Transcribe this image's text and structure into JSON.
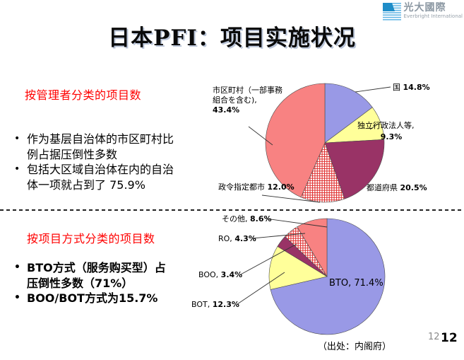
{
  "logo": {
    "zh": "光大國際",
    "en": "Everbright International"
  },
  "title": "日本PFI：项目实施状况",
  "sections": [
    {
      "heading": "按管理者分类的项目数",
      "bullets": [
        "作为基层自治体的市区町村比例占据压倒性多数",
        "包括大区域自治体在内的自治体一项就占到了 75.9%"
      ]
    },
    {
      "heading": "按项目方式分类的项目数",
      "bullets": [
        "BTO方式（服务购买型）占压倒性多数（71%）",
        "BOO/BOT方式为15.7%"
      ]
    }
  ],
  "chart_data": [
    {
      "type": "pie",
      "title": "按管理者分类的项目数",
      "labels": [
        "国",
        "独立行政法人等,",
        "都道府県",
        "政令指定都市",
        "市区町村（一部事務組合を含む),"
      ],
      "values": [
        14.8,
        9.3,
        20.5,
        12.0,
        43.4
      ],
      "display_values": [
        "14.8%",
        "9.3%",
        "20.5%",
        "12.0%",
        "43.4%"
      ],
      "colors": [
        "#9999E6",
        "#FFFF9A",
        "#993366",
        "pattern:red-grid",
        "#F88282"
      ],
      "start_angle_deg": 0,
      "direction": "clockwise",
      "legend_position": "outside-leader-lines"
    },
    {
      "type": "pie",
      "title": "按项目方式分类的项目数",
      "labels": [
        "BTO,",
        "BOT,",
        "BOO,",
        "RO,",
        "その他,"
      ],
      "values": [
        71.4,
        12.3,
        3.4,
        4.3,
        8.6
      ],
      "display_values": [
        "71.4%",
        "12.3%",
        "3.4%",
        "4.3%",
        "8.6%"
      ],
      "colors": [
        "#9999E6",
        "#FFFF9A",
        "#993366",
        "pattern:red-grid",
        "#F88282"
      ],
      "start_angle_deg": 0,
      "direction": "clockwise",
      "legend_position": "outside-leader-lines"
    }
  ],
  "footer": {
    "source": "（出处：内阁府）",
    "page_small": "12",
    "page_large": "12"
  },
  "palette": {
    "heading_red": "#FF0000",
    "periwinkle": "#9999E6",
    "pale_yellow": "#FFFF9A",
    "maroon": "#993366",
    "salmon": "#F88282",
    "pattern_red": "#E03030"
  }
}
